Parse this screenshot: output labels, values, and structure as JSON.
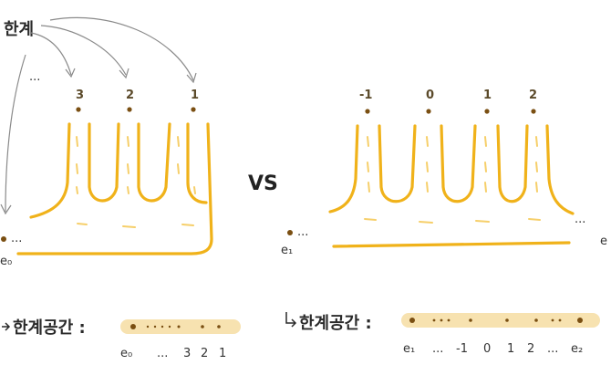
{
  "annotation": {
    "label": "한계",
    "dots": "..."
  },
  "left": {
    "peak_labels": [
      "3",
      "2",
      "1"
    ],
    "base_label": "e₀",
    "dots": "...",
    "boundary_caption": "한계공간 :",
    "boundary_labels": [
      "e₀",
      "...",
      "3",
      "2",
      "1"
    ]
  },
  "vs_label": "VS",
  "right": {
    "peak_labels": [
      "-1",
      "0",
      "1",
      "2"
    ],
    "left_end_label": "e₁",
    "right_end_label": "e",
    "dots_left": "...",
    "dots_right": "...",
    "boundary_caption": "한계공간 :",
    "boundary_labels": [
      "e₁",
      "...",
      "-1",
      "0",
      "1",
      "2",
      "...",
      "e₂"
    ]
  },
  "colors": {
    "surface": "#f0b21a",
    "surface_light": "#f6cf6a",
    "ink": "#2a2a2a",
    "arrow": "#8a8a8a",
    "dot": "#7a4f12",
    "highlight": "#f7e2b0"
  }
}
